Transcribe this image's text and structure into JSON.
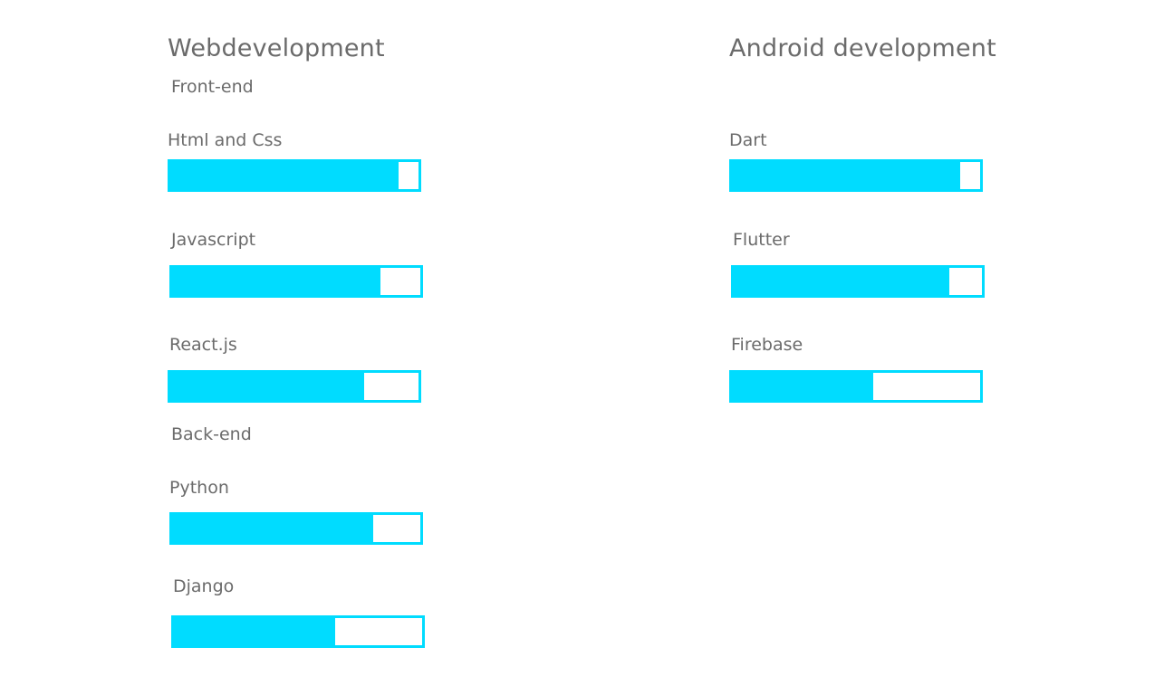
{
  "columns": [
    {
      "id": "web",
      "title": "Webdevelopment",
      "groups": [
        {
          "title": "Front-end",
          "skills": [
            {
              "name": "Html and Css",
              "level": 0.92
            },
            {
              "name": "Javascript",
              "level": 0.84
            },
            {
              "name": "React.js",
              "level": 0.78
            }
          ]
        },
        {
          "title": "Back-end",
          "skills": [
            {
              "name": "Python",
              "level": 0.81
            },
            {
              "name": "Django",
              "level": 0.65
            }
          ]
        }
      ]
    },
    {
      "id": "android",
      "title": "Android development",
      "groups": [
        {
          "title": "",
          "skills": [
            {
              "name": "Dart",
              "level": 0.92
            },
            {
              "name": "Flutter",
              "level": 0.87
            },
            {
              "name": "Firebase",
              "level": 0.57
            }
          ]
        }
      ]
    }
  ],
  "colors": {
    "bar": "#00dcff",
    "text": "#6b6b6b"
  }
}
